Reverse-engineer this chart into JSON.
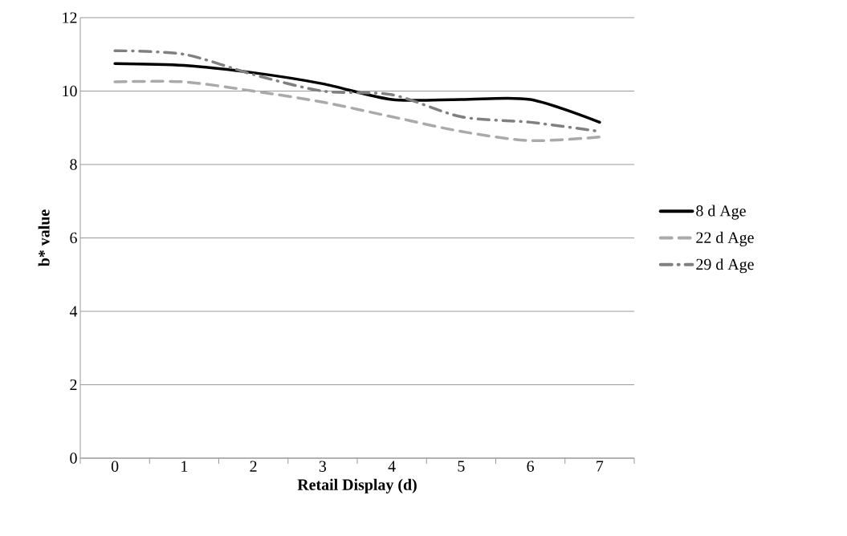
{
  "chart_data": {
    "type": "line",
    "xlabel": "Retail Display (d)",
    "ylabel": "b* value",
    "categories": [
      "0",
      "1",
      "2",
      "3",
      "4",
      "5",
      "6",
      "7"
    ],
    "series": [
      {
        "name": "8 d Age",
        "color": "#000000",
        "line_style": "solid",
        "values": [
          10.75,
          10.7,
          10.5,
          10.2,
          9.77,
          9.77,
          9.77,
          9.15
        ]
      },
      {
        "name": "22 d Age",
        "color": "#aaaaaa",
        "line_style": "dashed",
        "values": [
          10.25,
          10.25,
          10.0,
          9.7,
          9.3,
          8.9,
          8.65,
          8.75
        ]
      },
      {
        "name": "29 d Age",
        "color": "#808080",
        "line_style": "dashdot",
        "values": [
          11.1,
          11.0,
          10.45,
          10.0,
          9.9,
          9.3,
          9.15,
          8.9
        ]
      }
    ],
    "ylim": [
      0,
      12
    ],
    "yticks": [
      0,
      2,
      4,
      6,
      8,
      10,
      12
    ],
    "grid": "y",
    "legend": "right",
    "marker": "none"
  }
}
